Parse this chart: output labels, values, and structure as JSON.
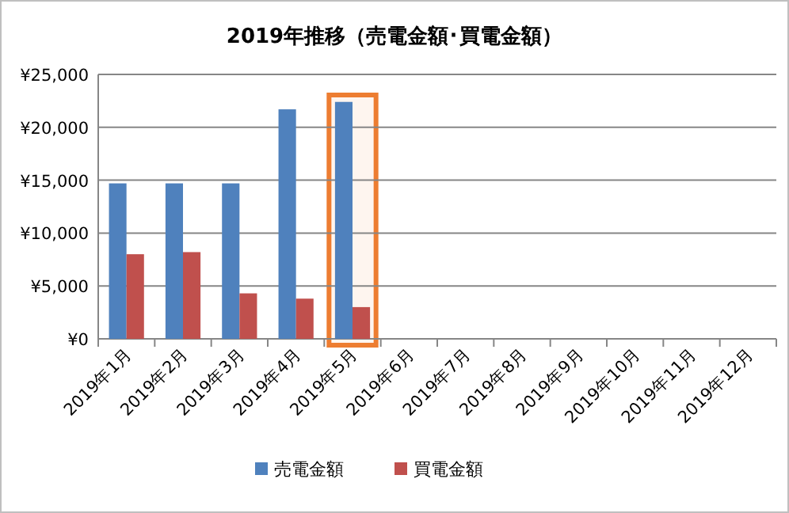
{
  "chart_data": {
    "type": "bar",
    "title": "2019年推移（売電金額･買電金額）",
    "categories": [
      "2019年1月",
      "2019年2月",
      "2019年3月",
      "2019年4月",
      "2019年5月",
      "2019年6月",
      "2019年7月",
      "2019年8月",
      "2019年9月",
      "2019年10月",
      "2019年11月",
      "2019年12月"
    ],
    "series": [
      {
        "name": "売電金額",
        "color": "#4f81bd",
        "values": [
          14700,
          14700,
          14700,
          21700,
          22400,
          null,
          null,
          null,
          null,
          null,
          null,
          null
        ]
      },
      {
        "name": "買電金額",
        "color": "#c0504d",
        "values": [
          8000,
          8200,
          4300,
          3800,
          3000,
          null,
          null,
          null,
          null,
          null,
          null,
          null
        ]
      }
    ],
    "ylim": [
      0,
      25000
    ],
    "yticks": [
      {
        "value": 0,
        "label": "¥0"
      },
      {
        "value": 5000,
        "label": "¥5,000"
      },
      {
        "value": 10000,
        "label": "¥10,000"
      },
      {
        "value": 15000,
        "label": "¥15,000"
      },
      {
        "value": 20000,
        "label": "¥20,000"
      },
      {
        "value": 25000,
        "label": "¥25,000"
      }
    ],
    "grid": "y",
    "legend": "bottom",
    "bands": [
      {
        "axis": "x",
        "from": "2019年5月",
        "to": "2019年5月",
        "color": "#ed7d31"
      }
    ]
  }
}
